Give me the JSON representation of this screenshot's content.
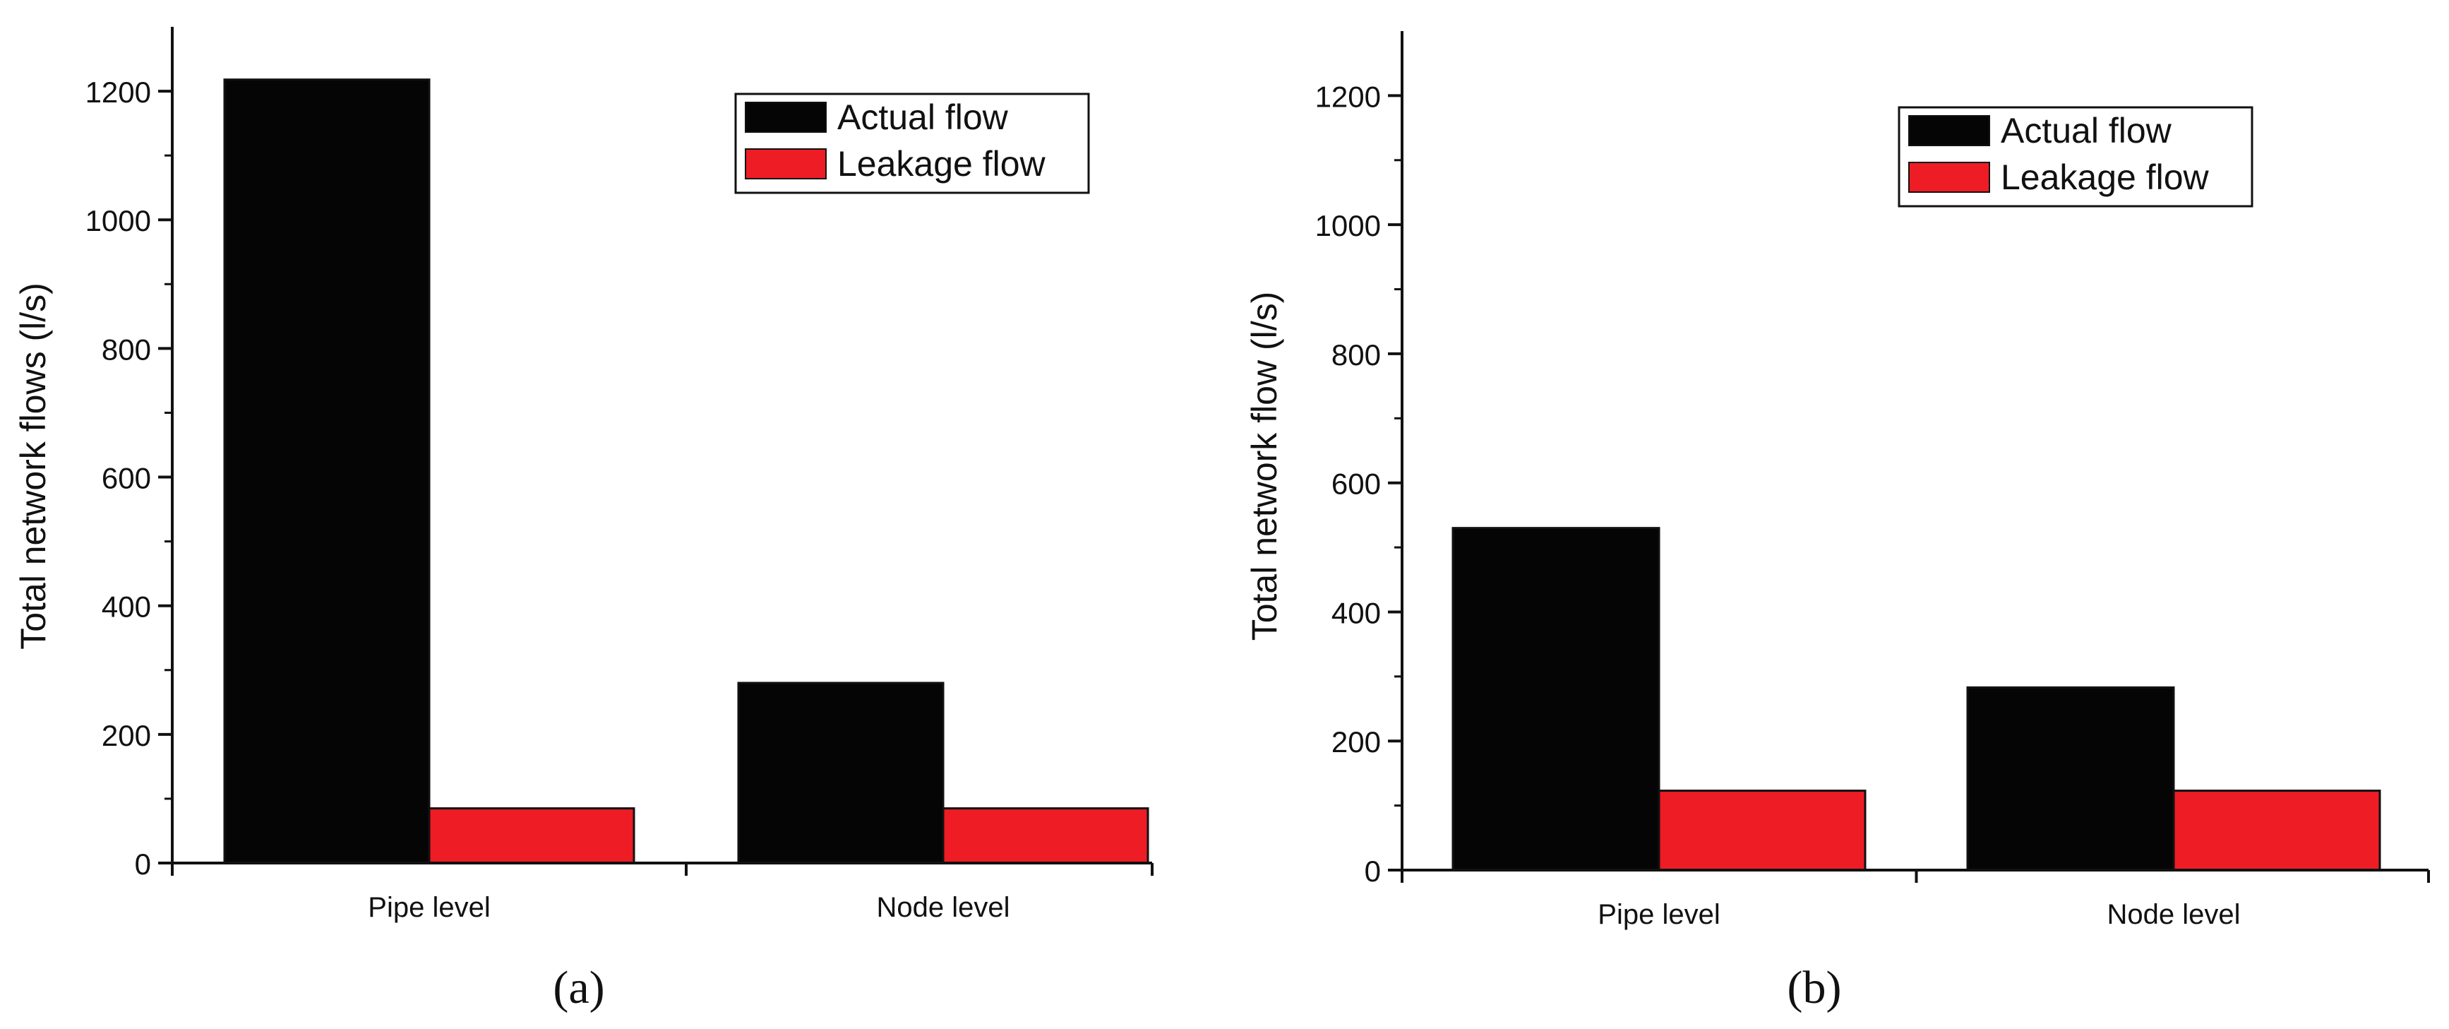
{
  "colors": {
    "actual": "#050505",
    "leakage": "#ee1c24",
    "axis": "#111111"
  },
  "chart_data": [
    {
      "type": "bar",
      "panel_label": "(a)",
      "categories": [
        "Pipe level",
        "Node level"
      ],
      "series": [
        {
          "name": "Actual flow",
          "values": [
            1218,
            280
          ]
        },
        {
          "name": "Leakage flow",
          "values": [
            85,
            85
          ]
        }
      ],
      "ylabel": "Total network flows (l/s)",
      "xlabel": "",
      "ylim": [
        0,
        1300
      ],
      "yticks": [
        0,
        200,
        400,
        600,
        800,
        1000,
        1200
      ],
      "legend": "top-right",
      "grid": false
    },
    {
      "type": "bar",
      "panel_label": "(b)",
      "categories": [
        "Pipe level",
        "Node level"
      ],
      "series": [
        {
          "name": "Actual flow",
          "values": [
            530,
            283
          ]
        },
        {
          "name": "Leakage flow",
          "values": [
            123,
            123
          ]
        }
      ],
      "ylabel": "Total network flow (l/s)",
      "xlabel": "",
      "ylim": [
        0,
        1300
      ],
      "yticks": [
        0,
        200,
        400,
        600,
        800,
        1000,
        1200
      ],
      "legend": "top-right",
      "grid": false
    }
  ]
}
